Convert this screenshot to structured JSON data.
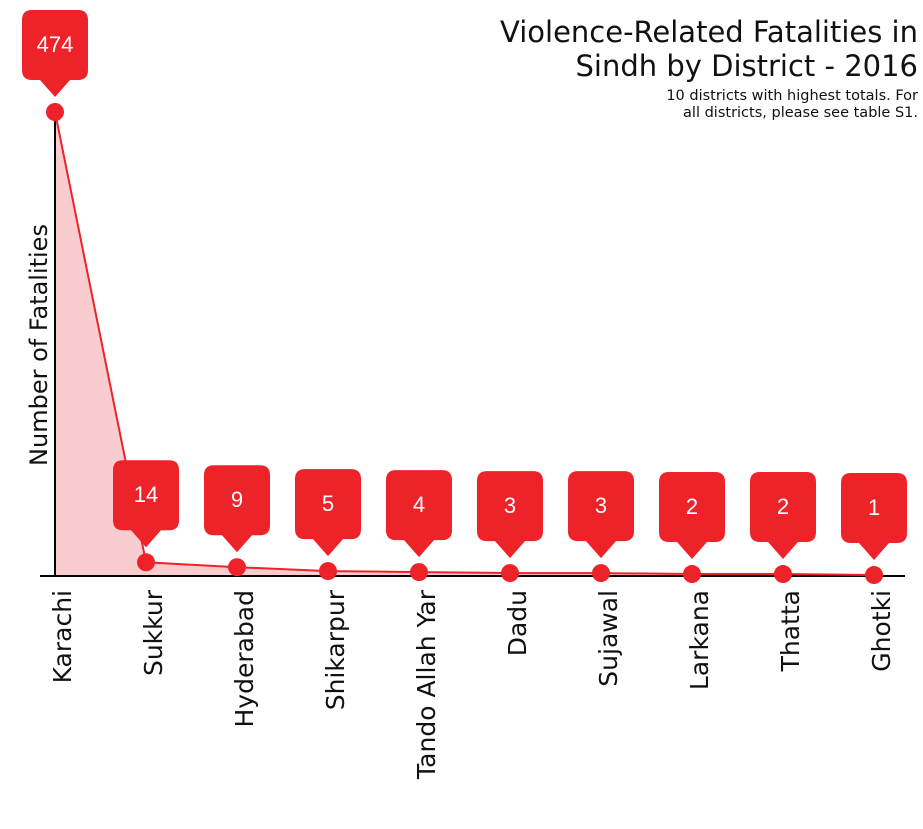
{
  "chart_data": {
    "type": "line",
    "title": [
      "Violence-Related Fatalities in",
      "Sindh by District - 2016"
    ],
    "subtitle": [
      "10 districts with highest totals. For",
      "all districts, please see table S1."
    ],
    "y_label": "Number of Fatalities",
    "categories": [
      "Karachi",
      "Sukkur",
      "Hyderabad",
      "Shikarpur",
      "Tando Allah Yar",
      "Dadu",
      "Sujawal",
      "Larkana",
      "Thatta",
      "Ghotki"
    ],
    "values": [
      474,
      14,
      9,
      5,
      4,
      3,
      3,
      2,
      2,
      1
    ],
    "color": "#ee2229",
    "area_color": "#f9cdd0",
    "ylim": [
      0,
      474
    ]
  }
}
